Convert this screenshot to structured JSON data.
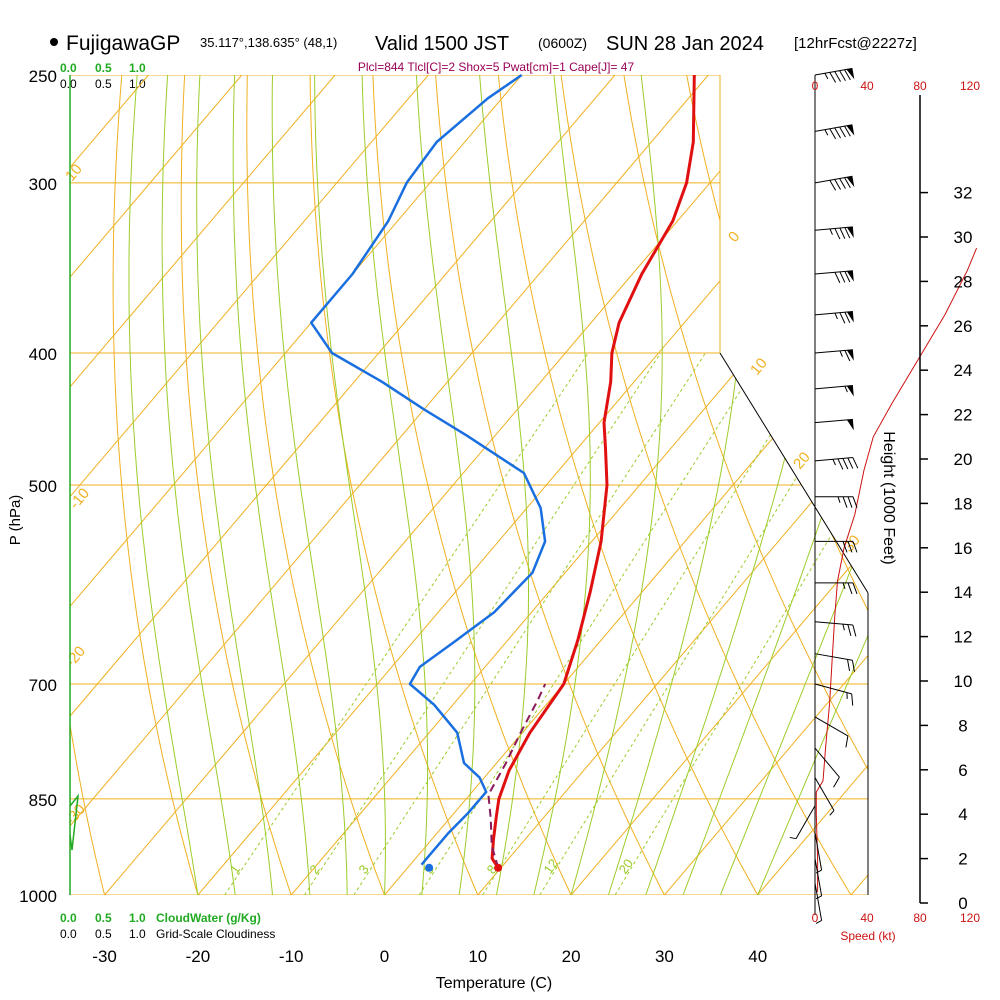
{
  "header": {
    "station": "FujigawaGP",
    "coords": "35.117°,138.635° (48,1)",
    "valid": "Valid 1500 JST",
    "zulu": "(0600Z)",
    "date": "SUN 28 Jan 2024",
    "fcst": "[12hrFcst@2227z]",
    "indices": "Plcl=844 Tlcl[C]=2 Shox=5 Pwat[cm]=1 Cape[J]= 47"
  },
  "colors": {
    "temperature": "#e01010",
    "dewpoint": "#1a6fe0",
    "parcel": "#8b1a5a",
    "isobar": "#f0b020",
    "isotherm": "#f0b020",
    "dry_adiabat": "#f0b020",
    "moist_adiabat": "#9ccc2a",
    "mixing_ratio": "#9ccc2a",
    "cloud": "#22aa22",
    "wind_speed": "#cc1111",
    "indices": "#990055"
  },
  "left_scales": {
    "cloudwater_ticks": [
      "0.0",
      "0.5",
      "1.0"
    ],
    "cloudiness_ticks": [
      "0.0",
      "0.5",
      "1.0"
    ],
    "cloudwater_label": "CloudWater (g/Kg)",
    "cloudiness_label": "Grid-Scale Cloudiness"
  },
  "wind_axis": {
    "top_ticks": [
      "0",
      "40",
      "80",
      "120"
    ],
    "bottom_ticks": [
      "0",
      "40",
      "80",
      "120"
    ],
    "label": "Speed (kt)"
  },
  "chart_data": {
    "type": "line",
    "title": "",
    "xlabel": "Temperature (C)",
    "ylabel": "P (hPa)",
    "y2label": "Height (1000 Feet)",
    "x_ticks": [
      -30,
      -20,
      -10,
      0,
      10,
      20,
      30,
      40
    ],
    "pressure_ticks": [
      250,
      300,
      400,
      500,
      700,
      850,
      1000
    ],
    "height_ticks": [
      0,
      2,
      4,
      6,
      8,
      10,
      12,
      14,
      16,
      18,
      20,
      22,
      24,
      26,
      28,
      30,
      32
    ],
    "isotherm_labels": [
      {
        "value": "10",
        "t": -10
      },
      {
        "value": "0",
        "t": 0
      },
      {
        "value": "10",
        "t": 10
      },
      {
        "value": "20",
        "t": 20
      },
      {
        "value": "30",
        "t": 30
      },
      {
        "value": "-10",
        "t": -20
      },
      {
        "value": "-20",
        "t": -30
      },
      {
        "value": "-30",
        "t": -40
      }
    ],
    "mixing_ratio_labels": [
      "1",
      "2",
      "3",
      "5",
      "8",
      "12",
      "20"
    ],
    "series": [
      {
        "name": "Temperature",
        "points": [
          {
            "p": 955,
            "t": 9.7
          },
          {
            "p": 940,
            "t": 8.2
          },
          {
            "p": 910,
            "t": 6.6
          },
          {
            "p": 875,
            "t": 4.8
          },
          {
            "p": 850,
            "t": 3.5
          },
          {
            "p": 810,
            "t": 2.0
          },
          {
            "p": 760,
            "t": 0.8
          },
          {
            "p": 700,
            "t": 0.0
          },
          {
            "p": 650,
            "t": -2.5
          },
          {
            "p": 600,
            "t": -5.5
          },
          {
            "p": 550,
            "t": -9.0
          },
          {
            "p": 500,
            "t": -13.5
          },
          {
            "p": 470,
            "t": -17.0
          },
          {
            "p": 450,
            "t": -19.5
          },
          {
            "p": 420,
            "t": -22.5
          },
          {
            "p": 400,
            "t": -25.0
          },
          {
            "p": 380,
            "t": -27.0
          },
          {
            "p": 350,
            "t": -29.0
          },
          {
            "p": 320,
            "t": -30.5
          },
          {
            "p": 300,
            "t": -32.5
          },
          {
            "p": 280,
            "t": -35.5
          },
          {
            "p": 250,
            "t": -41.5
          }
        ]
      },
      {
        "name": "Dewpoint",
        "points": [
          {
            "p": 950,
            "t": 1.2
          },
          {
            "p": 935,
            "t": 1.2
          },
          {
            "p": 900,
            "t": 1.2
          },
          {
            "p": 870,
            "t": 1.5
          },
          {
            "p": 840,
            "t": 1.5
          },
          {
            "p": 820,
            "t": -0.5
          },
          {
            "p": 800,
            "t": -3.5
          },
          {
            "p": 760,
            "t": -7.0
          },
          {
            "p": 725,
            "t": -12.0
          },
          {
            "p": 700,
            "t": -16.5
          },
          {
            "p": 680,
            "t": -17.0
          },
          {
            "p": 650,
            "t": -15.5
          },
          {
            "p": 620,
            "t": -14.0
          },
          {
            "p": 580,
            "t": -13.5
          },
          {
            "p": 550,
            "t": -15.0
          },
          {
            "p": 520,
            "t": -18.5
          },
          {
            "p": 490,
            "t": -23.5
          },
          {
            "p": 460,
            "t": -33.0
          },
          {
            "p": 440,
            "t": -40.0
          },
          {
            "p": 420,
            "t": -47.0
          },
          {
            "p": 400,
            "t": -55.0
          },
          {
            "p": 380,
            "t": -60.0
          },
          {
            "p": 350,
            "t": -60.0
          },
          {
            "p": 320,
            "t": -61.0
          },
          {
            "p": 300,
            "t": -62.5
          },
          {
            "p": 280,
            "t": -63.0
          },
          {
            "p": 260,
            "t": -61.5
          },
          {
            "p": 250,
            "t": -60.0
          }
        ]
      },
      {
        "name": "Parcel",
        "points": [
          {
            "p": 955,
            "t": 9.7
          },
          {
            "p": 920,
            "t": 7.0
          },
          {
            "p": 880,
            "t": 4.5
          },
          {
            "p": 844,
            "t": 2.0
          },
          {
            "p": 800,
            "t": 1.0
          },
          {
            "p": 760,
            "t": -0.2
          },
          {
            "p": 720,
            "t": -1.3
          },
          {
            "p": 700,
            "t": -2.0
          }
        ]
      }
    ],
    "surface_points": [
      {
        "name": "Temperature",
        "p": 955,
        "t": 9.7
      },
      {
        "name": "Dewpoint",
        "p": 955,
        "t": 2.3
      }
    ],
    "wind_speed_profile": [
      {
        "h": 0.5,
        "kt": 2
      },
      {
        "h": 2,
        "kt": 2
      },
      {
        "h": 4,
        "kt": 1
      },
      {
        "h": 5,
        "kt": 1
      },
      {
        "h": 5.5,
        "kt": 6
      },
      {
        "h": 7,
        "kt": 8
      },
      {
        "h": 9,
        "kt": 11
      },
      {
        "h": 11,
        "kt": 13
      },
      {
        "h": 13,
        "kt": 15
      },
      {
        "h": 14.5,
        "kt": 17
      },
      {
        "h": 16,
        "kt": 22
      },
      {
        "h": 17.5,
        "kt": 30
      },
      {
        "h": 19.5,
        "kt": 37
      },
      {
        "h": 21,
        "kt": 44
      },
      {
        "h": 22.5,
        "kt": 58
      },
      {
        "h": 24.5,
        "kt": 78
      },
      {
        "h": 26.5,
        "kt": 98
      },
      {
        "h": 28.5,
        "kt": 115
      },
      {
        "h": 29.5,
        "kt": 122
      }
    ],
    "wind_barbs": [
      {
        "p": 250,
        "dir": 260,
        "kt": 95
      },
      {
        "p": 275,
        "dir": 260,
        "kt": 95
      },
      {
        "p": 300,
        "dir": 260,
        "kt": 90
      },
      {
        "p": 325,
        "dir": 265,
        "kt": 85
      },
      {
        "p": 350,
        "dir": 265,
        "kt": 80
      },
      {
        "p": 375,
        "dir": 265,
        "kt": 75
      },
      {
        "p": 400,
        "dir": 265,
        "kt": 65
      },
      {
        "p": 425,
        "dir": 265,
        "kt": 55
      },
      {
        "p": 450,
        "dir": 265,
        "kt": 50
      },
      {
        "p": 480,
        "dir": 265,
        "kt": 45
      },
      {
        "p": 510,
        "dir": 270,
        "kt": 35
      },
      {
        "p": 550,
        "dir": 270,
        "kt": 30
      },
      {
        "p": 590,
        "dir": 270,
        "kt": 25
      },
      {
        "p": 630,
        "dir": 275,
        "kt": 25
      },
      {
        "p": 665,
        "dir": 280,
        "kt": 20
      },
      {
        "p": 700,
        "dir": 285,
        "kt": 15
      },
      {
        "p": 740,
        "dir": 300,
        "kt": 10
      },
      {
        "p": 780,
        "dir": 320,
        "kt": 10
      },
      {
        "p": 820,
        "dir": 330,
        "kt": 5
      },
      {
        "p": 860,
        "dir": 30,
        "kt": 5
      },
      {
        "p": 900,
        "dir": 350,
        "kt": 5
      },
      {
        "p": 940,
        "dir": 350,
        "kt": 5
      },
      {
        "p": 980,
        "dir": 350,
        "kt": 5
      }
    ]
  }
}
